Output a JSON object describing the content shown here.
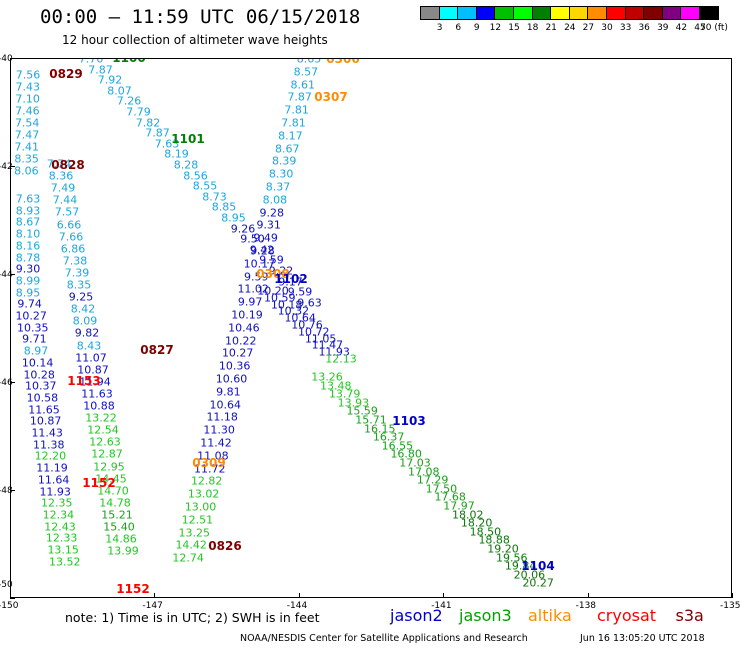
{
  "title": "00:00 – 11:59 UTC 06/15/2018",
  "subtitle": "12 hour collection of altimeter wave heights",
  "legend": {
    "colors": [
      "#888888",
      "#00ffff",
      "#00bfff",
      "#0000ff",
      "#00c000",
      "#00ff00",
      "#008000",
      "#ffff00",
      "#ffd700",
      "#ff8c00",
      "#ff0000",
      "#c00000",
      "#800000",
      "#800080",
      "#ff00ff",
      "#000000"
    ],
    "labels": [
      "3",
      "6",
      "9",
      "12",
      "15",
      "18",
      "21",
      "24",
      "27",
      "30",
      "33",
      "36",
      "39",
      "42",
      "45",
      "70 (ft)"
    ]
  },
  "axes": {
    "lat_labels": [
      "-40",
      "-42",
      "-44",
      "-46",
      "-48",
      "-50"
    ],
    "lon_labels": [
      "-150",
      "-147",
      "-144",
      "-141",
      "-138",
      "-135"
    ]
  },
  "pass_times": [
    {
      "text": "1100",
      "color": "#008000"
    },
    {
      "text": "0829",
      "color": "#800000"
    },
    {
      "text": "0306",
      "color": "#ff8c00"
    },
    {
      "text": "0307",
      "color": "#ff8c00"
    },
    {
      "text": "1101",
      "color": "#008000"
    },
    {
      "text": "0828",
      "color": "#800000"
    },
    {
      "text": "0308",
      "color": "#ff8c00"
    },
    {
      "text": "1102",
      "color": "#0000cc"
    },
    {
      "text": "0827",
      "color": "#800000"
    },
    {
      "text": "1153",
      "color": "#ff0000"
    },
    {
      "text": "1103",
      "color": "#0000cc"
    },
    {
      "text": "0309",
      "color": "#ff8c00"
    },
    {
      "text": "1152",
      "color": "#ff0000"
    },
    {
      "text": "0826",
      "color": "#800000"
    },
    {
      "text": "1104",
      "color": "#0000cc"
    },
    {
      "text": "1152",
      "color": "#ff0000"
    }
  ],
  "tracks": {
    "col_a": [
      "7.56",
      "7.43",
      "7.10",
      "7.46",
      "7.54",
      "7.47",
      "7.41",
      "8.35",
      "8.06"
    ],
    "col_a2": [
      "7.63",
      "8.93",
      "8.67",
      "8.10",
      "8.16",
      "8.78",
      "9.30",
      "8.99",
      "8.95",
      "9.74",
      "10.27",
      "10.35",
      "9.71",
      "8.97",
      "10.14",
      "10.28",
      "10.37",
      "10.58",
      "11.65",
      "10.87",
      "11.43",
      "11.38",
      "12.20",
      "11.19",
      "11.64",
      "11.93",
      "12.35",
      "12.34",
      "12.43",
      "12.33",
      "13.15",
      "13.52"
    ],
    "col_b": [
      "7.76",
      "7.87",
      "7.92",
      "8.07",
      "7.26",
      "7.79",
      "7.82",
      "7.87",
      "7.63",
      "8.19",
      "8.28",
      "8.56",
      "8.55",
      "8.73",
      "8.85",
      "8.95",
      "9.26",
      "9.50",
      "9.42",
      "9.59",
      "9.22",
      "9.17",
      "9.59",
      "9.63"
    ],
    "col_c": [
      "7.74",
      "8.36",
      "7.49",
      "7.44",
      "7.57",
      "6.66",
      "7.66",
      "6.86",
      "7.38",
      "7.39",
      "8.35",
      "9.25",
      "8.42",
      "8.09",
      "9.82",
      "8.43",
      "11.07",
      "10.87",
      "11.94",
      "11.63",
      "10.88",
      "13.22",
      "12.54",
      "12.63",
      "12.87",
      "12.95",
      "14.45",
      "14.70",
      "14.78",
      "15.21",
      "15.40",
      "14.86",
      "13.99"
    ],
    "col_d": [
      "8.65",
      "8.57",
      "8.61",
      "7.87",
      "7.81",
      "7.81",
      "8.17",
      "8.67",
      "8.39",
      "8.30",
      "8.37",
      "8.08",
      "9.28",
      "9.31",
      "9.49",
      "9.28",
      "10.17",
      "9.59",
      "11.02",
      "9.97",
      "10.19",
      "10.46",
      "10.22",
      "10.27",
      "10.36",
      "10.60",
      "9.81",
      "10.64",
      "11.18",
      "11.30",
      "11.42",
      "11.08",
      "11.72",
      "12.82",
      "13.02",
      "13.00",
      "12.51",
      "13.25",
      "14.42",
      "12.74"
    ],
    "diag_blue": [
      "10.20",
      "10.59",
      "10.18",
      "10.32",
      "10.64",
      "10.76",
      "10.72",
      "11.05",
      "11.47",
      "11.93",
      "12.13"
    ],
    "diag_green": [
      "13.26",
      "13.48",
      "13.79",
      "13.93",
      "15.59",
      "15.71",
      "16.15",
      "16.37",
      "16.55",
      "16.80",
      "17.03",
      "17.08",
      "17.29",
      "17.50",
      "17.68",
      "17.97",
      "18.02",
      "18.20",
      "18.50",
      "18.88",
      "19.20",
      "19.56",
      "19.84",
      "20.06",
      "20.27"
    ]
  },
  "footer": {
    "note": "note:  1) Time is in UTC;  2) SWH is in feet",
    "satellites": [
      {
        "name": "jason2",
        "color": "#0000cc"
      },
      {
        "name": "jason3",
        "color": "#00a000"
      },
      {
        "name": "altika",
        "color": "#ff8c00"
      },
      {
        "name": "cryosat",
        "color": "#ff0000"
      },
      {
        "name": "s3a",
        "color": "#800000"
      }
    ],
    "credit": "NOAA/NESDIS Center for Satellite Applications and Research",
    "timestamp": "Jun 16 13:05:20 UTC 2018"
  }
}
